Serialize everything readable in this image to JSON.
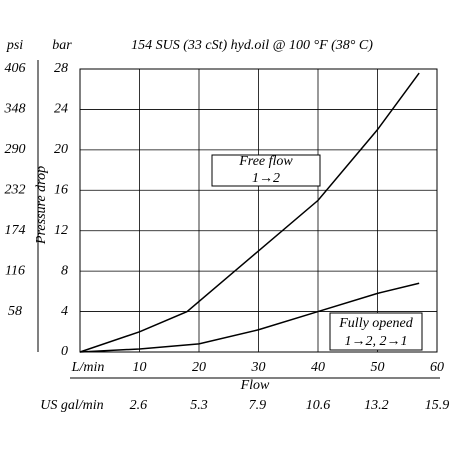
{
  "chart_data": {
    "type": "line",
    "title": "154 SUS (33 cSt) hyd.oil @ 100  °F (38° C)",
    "y_label": "bar",
    "y2_label": "psi",
    "y_axis_title": "Pressure drop",
    "x_unit_label": "L/min",
    "x_axis_title": "Flow",
    "x2_unit_label": "US gal/min",
    "xlim": [
      0,
      60
    ],
    "xticks": [
      10,
      20,
      30,
      40,
      50,
      60
    ],
    "x2lim": [
      0,
      15.9
    ],
    "x2ticks": [
      2.6,
      5.3,
      7.9,
      10.6,
      13.2,
      15.9
    ],
    "ylim": [
      0,
      28
    ],
    "yticks": [
      0,
      4,
      8,
      12,
      16,
      20,
      24,
      28
    ],
    "y2lim": [
      0,
      406
    ],
    "y2ticks": [
      58,
      116,
      174,
      232,
      290,
      348,
      406
    ],
    "grid": true,
    "series": [
      {
        "name": "Free flow",
        "sublabel": "1→2",
        "color": "#000000",
        "x": [
          0,
          10,
          18,
          25,
          30,
          40,
          50,
          57
        ],
        "values": [
          0,
          2,
          4,
          7.5,
          10,
          15,
          22,
          27.6
        ]
      },
      {
        "name": "Fully opened",
        "sublabel": "1→2, 2→1",
        "color": "#000000",
        "x": [
          0,
          10,
          20,
          30,
          40,
          50,
          57
        ],
        "values": [
          0,
          0.3,
          0.8,
          2.2,
          4,
          5.8,
          6.8
        ]
      }
    ]
  }
}
